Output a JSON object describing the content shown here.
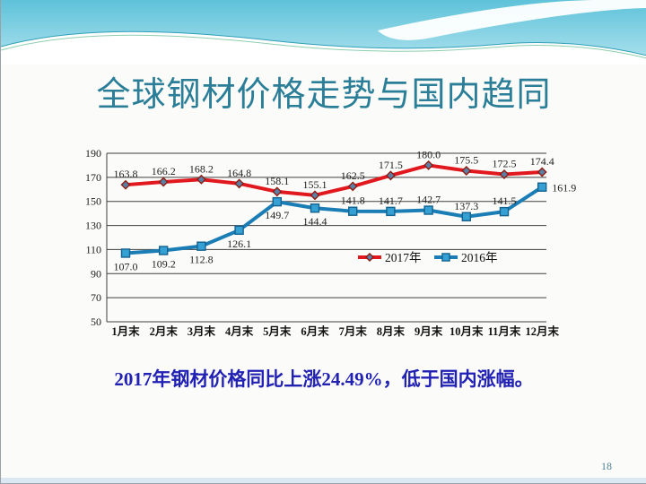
{
  "slide": {
    "title": "全球钢材价格走势与国内趋同",
    "caption": "2017年钢材价格同比上涨24.49%，低于国内涨幅。",
    "page_number": "18"
  },
  "colors": {
    "title_text": "#2b7e98",
    "caption_text": "#2121b4",
    "series_2017": "#e1191f",
    "series_2016": "#1b7db5",
    "gridline": "#3f3f3f",
    "band_top": "#5ec2d9",
    "band_bottom": "#aee2ee",
    "bottom_strip": "#dbe8f3"
  },
  "chart_data": {
    "type": "line",
    "title": "",
    "xlabel": "",
    "ylabel": "",
    "categories": [
      "1月末",
      "2月末",
      "3月末",
      "4月末",
      "5月末",
      "6月末",
      "7月末",
      "8月末",
      "9月末",
      "10月末",
      "11月末",
      "12月末"
    ],
    "series": [
      {
        "name": "2017年",
        "color": "#e1191f",
        "marker": "diamond",
        "marker_fill": "#5b80a5",
        "marker_stroke": "#8e1b12",
        "values": [
          163.8,
          166.2,
          168.2,
          164.8,
          158.1,
          155.1,
          162.5,
          171.5,
          180.0,
          175.5,
          172.5,
          174.4
        ],
        "label_pos": [
          "above",
          "above",
          "above",
          "above",
          "above",
          "above",
          "above",
          "above",
          "above",
          "above",
          "above",
          "above"
        ]
      },
      {
        "name": "2016年",
        "color": "#1b7db5",
        "marker": "square",
        "marker_fill": "#35a0d4",
        "marker_stroke": "#13628f",
        "values": [
          107.0,
          109.2,
          112.8,
          126.1,
          149.7,
          144.4,
          141.8,
          141.7,
          142.7,
          137.3,
          141.5,
          161.9
        ],
        "label_pos": [
          "below",
          "below",
          "below",
          "below",
          "below",
          "below",
          "above",
          "above",
          "above",
          "above",
          "above",
          "right"
        ]
      }
    ],
    "ylim": [
      50,
      190
    ],
    "yticks": [
      50,
      70,
      90,
      110,
      130,
      150,
      170,
      190
    ],
    "grid": true,
    "legend_position": "inside-center-right"
  }
}
